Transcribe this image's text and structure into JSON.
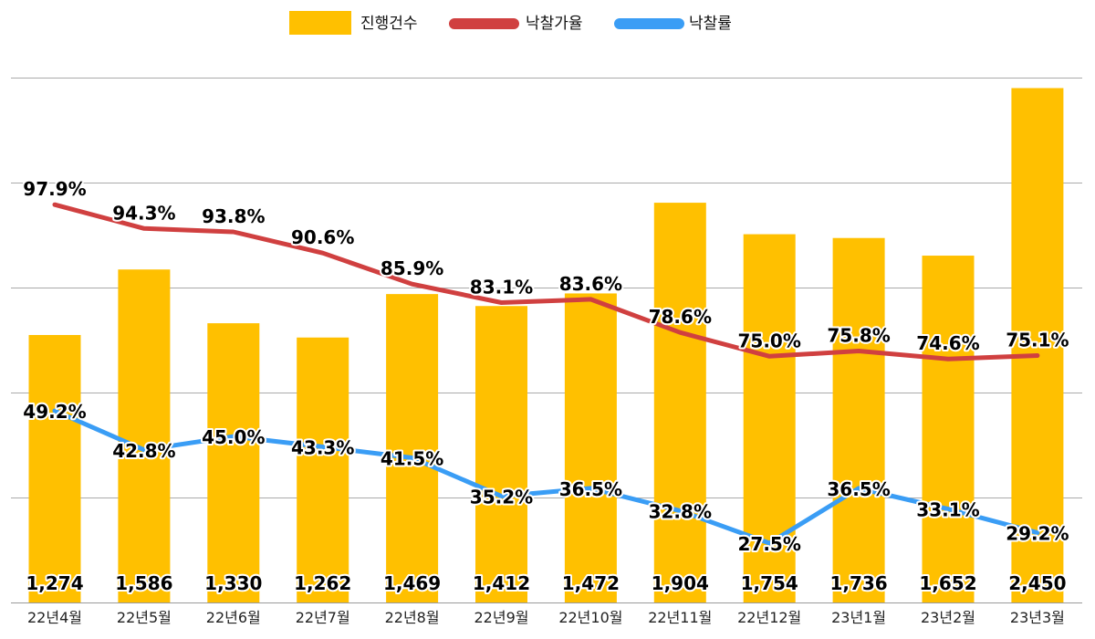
{
  "chart_data": {
    "type": "bar",
    "title": "",
    "categories": [
      "22년4월",
      "22년5월",
      "22년6월",
      "22년7월",
      "22년8월",
      "22년9월",
      "22년10월",
      "22년11월",
      "22년12월",
      "23년1월",
      "23년2월",
      "23년3월"
    ],
    "series": [
      {
        "name": "진행건수",
        "type": "bar",
        "color": "#FFC000",
        "values": [
          1274,
          1586,
          1330,
          1262,
          1469,
          1412,
          1472,
          1904,
          1754,
          1736,
          1652,
          2450
        ],
        "labels": [
          "1,274",
          "1,586",
          "1,330",
          "1,262",
          "1,469",
          "1,412",
          "1,472",
          "1,904",
          "1,754",
          "1,736",
          "1,652",
          "2,450"
        ]
      },
      {
        "name": "낙찰가율",
        "type": "line",
        "color": "#D04040",
        "values": [
          97.9,
          94.3,
          93.8,
          90.6,
          85.9,
          83.1,
          83.6,
          78.6,
          75.0,
          75.8,
          74.6,
          75.1
        ],
        "labels": [
          "97.9%",
          "94.3%",
          "93.8%",
          "90.6%",
          "85.9%",
          "83.1%",
          "83.6%",
          "78.6%",
          "75.0%",
          "75.8%",
          "74.6%",
          "75.1%"
        ]
      },
      {
        "name": "낙찰률",
        "type": "line",
        "color": "#3A9DF5",
        "values": [
          49.2,
          42.8,
          45.0,
          43.3,
          41.5,
          35.2,
          36.5,
          32.8,
          27.5,
          36.5,
          33.1,
          29.2
        ],
        "labels": [
          "49.2%",
          "42.8%",
          "45.0%",
          "43.3%",
          "41.5%",
          "35.2%",
          "36.5%",
          "32.8%",
          "27.5%",
          "36.5%",
          "33.1%",
          "29.2%"
        ]
      }
    ],
    "ylim": [
      0,
      2500
    ],
    "grid": true,
    "legend": "top-center",
    "xlabel": "",
    "ylabel": ""
  }
}
